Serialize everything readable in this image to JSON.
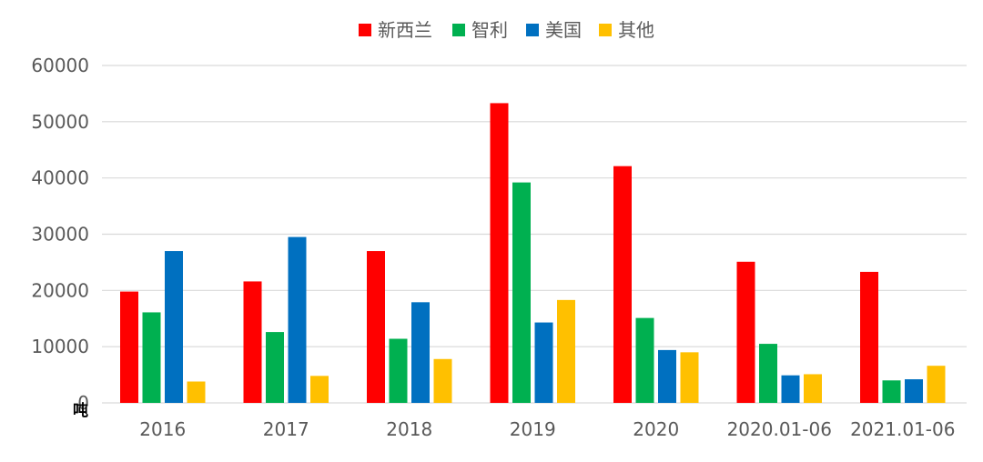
{
  "chart_data": {
    "type": "bar",
    "categories": [
      "2016",
      "2017",
      "2018",
      "2019",
      "2020",
      "2020.01-06",
      "2021.01-06"
    ],
    "series": [
      {
        "name": "新西兰",
        "color": "#ff0000",
        "values": [
          19800,
          21600,
          27000,
          53300,
          42100,
          25100,
          23300
        ]
      },
      {
        "name": "智利",
        "color": "#00b050",
        "values": [
          16100,
          12600,
          11400,
          39200,
          15100,
          10500,
          4000
        ]
      },
      {
        "name": "美国",
        "color": "#0070c0",
        "values": [
          27000,
          29500,
          17900,
          14300,
          9400,
          4900,
          4200
        ]
      },
      {
        "name": "其他",
        "color": "#ffc000",
        "values": [
          3800,
          4800,
          7800,
          18300,
          9000,
          5100,
          6600
        ]
      }
    ],
    "yticks": [
      "0",
      "10000",
      "20000",
      "30000",
      "40000",
      "50000",
      "60000"
    ],
    "ylim": [
      0,
      60000
    ],
    "unit_label": "吨",
    "legend_position": "top",
    "grid": true
  }
}
